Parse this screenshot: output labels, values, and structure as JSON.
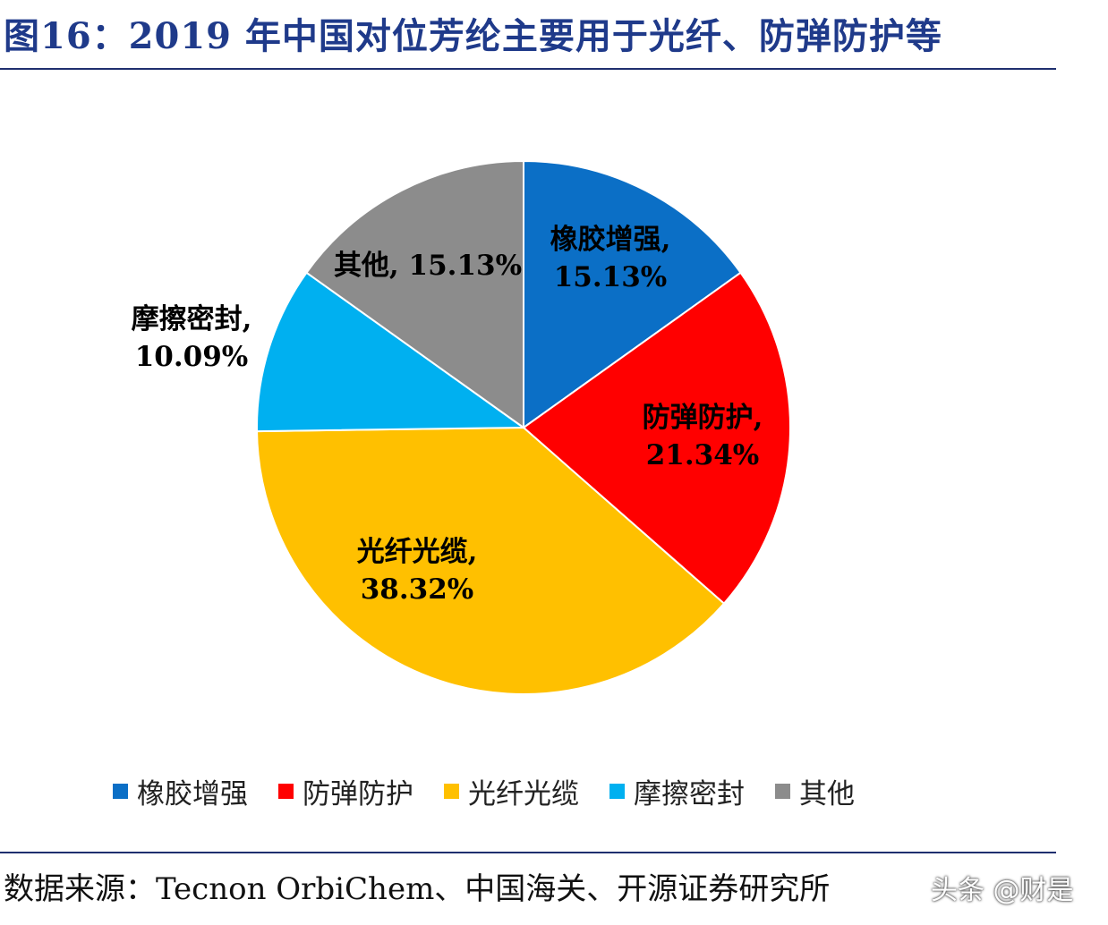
{
  "header": {
    "title": "图16：2019 年中国对位芳纶主要用于光纤、防弹防护等"
  },
  "chart_data": {
    "type": "pie",
    "title": "图16：2019 年中国对位芳纶主要用于光纤、防弹防护等",
    "start_angle": "12 o'clock",
    "direction": "clockwise",
    "slices": [
      {
        "name": "橡胶增强",
        "value": 15.13,
        "label_name": "橡胶增强,",
        "label_value": "15.13%",
        "color": "#0b6fc6"
      },
      {
        "name": "防弹防护",
        "value": 21.34,
        "label_name": "防弹防护,",
        "label_value": "21.34%",
        "color": "#ff0000"
      },
      {
        "name": "光纤光缆",
        "value": 38.32,
        "label_name": "光纤光缆,",
        "label_value": "38.32%",
        "color": "#ffc000"
      },
      {
        "name": "摩擦密封",
        "value": 10.09,
        "label_name": "摩擦密封,",
        "label_value": "10.09%",
        "color": "#00b0f0"
      },
      {
        "name": "其他",
        "value": 15.13,
        "label_name": "其他, 15.13%",
        "label_value": "",
        "color": "#8c8c8c"
      }
    ],
    "legend": [
      "橡胶增强",
      "防弹防护",
      "光纤光缆",
      "摩擦密封",
      "其他"
    ],
    "legend_position": "bottom"
  },
  "footer": {
    "source": "数据来源：Tecnon OrbiChem、中国海关、开源证券研究所",
    "watermark": "头条 @财是"
  }
}
